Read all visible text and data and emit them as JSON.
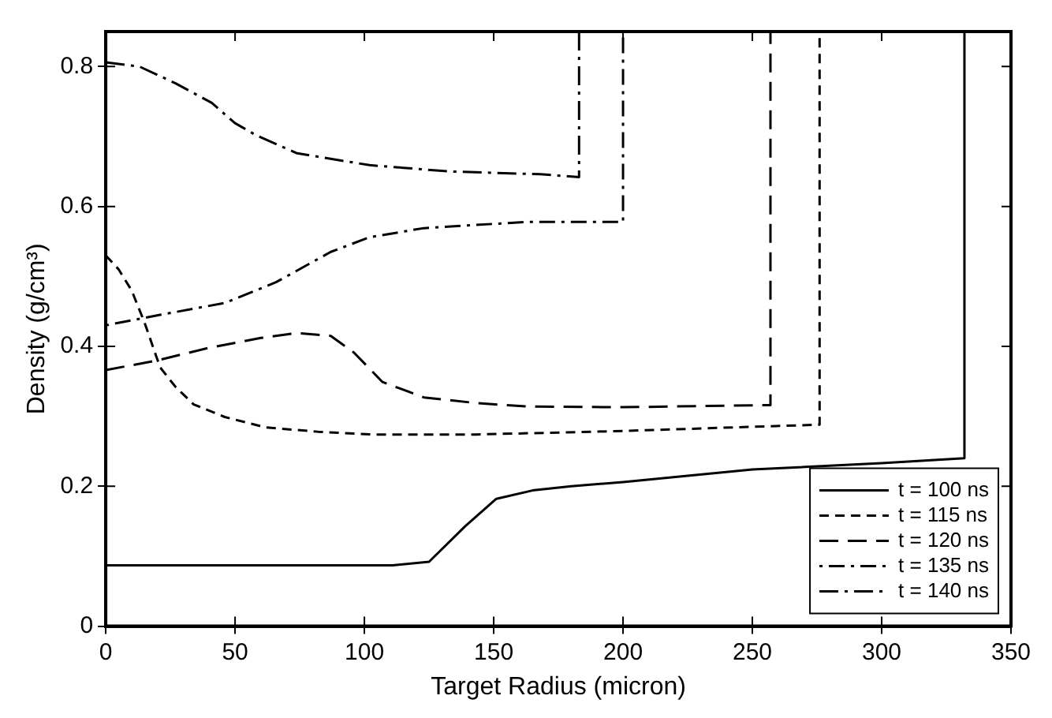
{
  "chart_data": {
    "type": "line",
    "xlabel": "Target Radius (micron)",
    "ylabel": "Density (g/cm³)",
    "xlim": [
      0,
      350
    ],
    "xticks": [
      0,
      50,
      100,
      150,
      200,
      250,
      300,
      350
    ],
    "ylim": [
      0,
      0.85
    ],
    "yticks": [
      0,
      0.2,
      0.4,
      0.6,
      0.8
    ],
    "grid": false,
    "legend": "bottom right",
    "marker": "none",
    "series": [
      {
        "name": "t = 100 ns",
        "color": "#000000",
        "line_style": "solid",
        "x": [
          0,
          111,
          125,
          139,
          151,
          165,
          180,
          200,
          250,
          300,
          332,
          332
        ],
        "values": [
          0.087,
          0.087,
          0.092,
          0.143,
          0.182,
          0.194,
          0.2,
          0.206,
          0.224,
          0.233,
          0.24,
          0.85
        ]
      },
      {
        "name": "t = 115 ns",
        "color": "#000000",
        "line_style": "dashed",
        "x": [
          0,
          5,
          10,
          15,
          21,
          27,
          34,
          46,
          62,
          82,
          103,
          143,
          200,
          250,
          276,
          276
        ],
        "values": [
          0.53,
          0.51,
          0.48,
          0.434,
          0.37,
          0.342,
          0.317,
          0.299,
          0.284,
          0.278,
          0.274,
          0.274,
          0.279,
          0.285,
          0.288,
          0.85
        ]
      },
      {
        "name": "t = 120 ns",
        "color": "#000000",
        "line_style": "longdash",
        "x": [
          0,
          20,
          40,
          60,
          74,
          87,
          96,
          107,
          123,
          143,
          163,
          200,
          257,
          257
        ],
        "values": [
          0.366,
          0.38,
          0.398,
          0.412,
          0.419,
          0.415,
          0.391,
          0.349,
          0.327,
          0.319,
          0.314,
          0.313,
          0.316,
          0.85
        ]
      },
      {
        "name": "t = 135 ns",
        "color": "#000000",
        "line_style": "dashdot",
        "x": [
          0,
          21,
          46,
          66,
          87,
          102,
          123,
          163,
          200,
          200
        ],
        "values": [
          0.43,
          0.445,
          0.462,
          0.492,
          0.535,
          0.556,
          0.569,
          0.578,
          0.578,
          0.85
        ]
      },
      {
        "name": "t = 140 ns",
        "color": "#000000",
        "line_style": "longdashdot",
        "x": [
          0,
          13,
          27,
          41,
          50,
          58,
          74,
          102,
          133,
          168,
          183,
          183
        ],
        "values": [
          0.806,
          0.8,
          0.776,
          0.748,
          0.719,
          0.702,
          0.676,
          0.659,
          0.65,
          0.646,
          0.642,
          0.85
        ]
      }
    ]
  }
}
